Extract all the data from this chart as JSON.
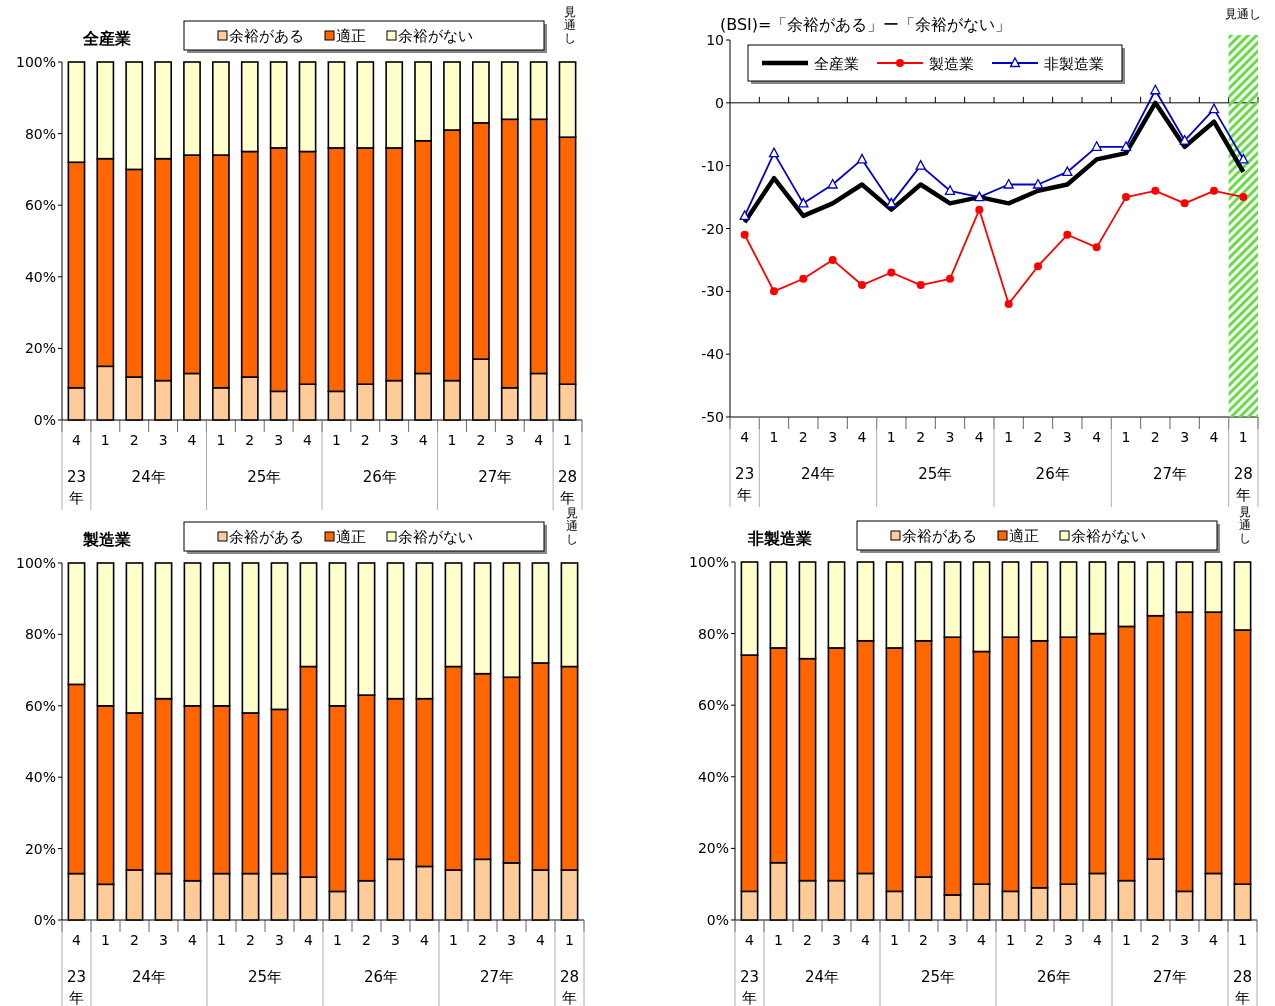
{
  "chart_data": [
    {
      "type": "bar",
      "stacked": true,
      "title": "全産業",
      "categories": [
        "4",
        "1",
        "2",
        "3",
        "4",
        "1",
        "2",
        "3",
        "4",
        "1",
        "2",
        "3",
        "4",
        "1",
        "2",
        "3",
        "4",
        "1"
      ],
      "series": [
        {
          "name": "余裕がある",
          "color": "#ffcc99",
          "values": [
            9,
            15,
            12,
            11,
            13,
            9,
            12,
            8,
            10,
            8,
            10,
            11,
            13,
            11,
            17,
            9,
            13,
            10
          ]
        },
        {
          "name": "適正",
          "color": "#ff6600",
          "values": [
            63,
            58,
            58,
            62,
            61,
            65,
            63,
            68,
            65,
            68,
            66,
            65,
            65,
            70,
            66,
            75,
            71,
            69
          ]
        },
        {
          "name": "余裕がない",
          "color": "#ffffcc",
          "values": [
            28,
            27,
            30,
            27,
            26,
            26,
            25,
            24,
            25,
            24,
            24,
            24,
            22,
            19,
            17,
            16,
            16,
            21
          ]
        }
      ],
      "ylim": [
        0,
        100
      ],
      "yticks": [
        {
          "value": 0,
          "label": "0%"
        },
        {
          "value": 20,
          "label": "20%"
        },
        {
          "value": 40,
          "label": "40%"
        },
        {
          "value": 60,
          "label": "60%"
        },
        {
          "value": 80,
          "label": "80%"
        },
        {
          "value": 100,
          "label": "100%"
        }
      ],
      "legend": "top",
      "annotations": [
        "23年",
        "24年",
        "25年",
        "26年",
        "27年",
        "28年",
        "見通し"
      ]
    },
    {
      "type": "line",
      "title": "(BSI)=「余裕がある」ー「余裕がない」",
      "categories": [
        "4",
        "1",
        "2",
        "3",
        "4",
        "1",
        "2",
        "3",
        "4",
        "1",
        "2",
        "3",
        "4",
        "1",
        "2",
        "3",
        "4",
        "1"
      ],
      "series": [
        {
          "name": "全産業",
          "color": "#000000",
          "marker": "none",
          "values": [
            -19,
            -12,
            -18,
            -16,
            -13,
            -17,
            -13,
            -16,
            -15,
            -16,
            -14,
            -13,
            -9,
            -8,
            0,
            -7,
            -3,
            -11
          ]
        },
        {
          "name": "製造業",
          "color": "#ff0000",
          "marker": "circle",
          "values": [
            -21,
            -30,
            -28,
            -25,
            -29,
            -27,
            -29,
            -28,
            -17,
            -32,
            -26,
            -21,
            -23,
            -15,
            -14,
            -16,
            -14,
            -15
          ]
        },
        {
          "name": "非製造業",
          "color": "#0000cc",
          "marker": "triangle",
          "values": [
            -18,
            -8,
            -16,
            -13,
            -9,
            -16,
            -10,
            -14,
            -15,
            -13,
            -13,
            -11,
            -7,
            -7,
            2,
            -6,
            -1,
            -9
          ]
        }
      ],
      "ylim": [
        -50,
        10
      ],
      "yticks": [
        -50,
        -40,
        -30,
        -20,
        -10,
        0,
        10
      ],
      "legend": "top left",
      "annotations": [
        "23年",
        "24年",
        "25年",
        "26年",
        "27年",
        "28年",
        "見通し"
      ]
    },
    {
      "type": "bar",
      "stacked": true,
      "title": "製造業",
      "categories": [
        "4",
        "1",
        "2",
        "3",
        "4",
        "1",
        "2",
        "3",
        "4",
        "1",
        "2",
        "3",
        "4",
        "1",
        "2",
        "3",
        "4",
        "1"
      ],
      "series": [
        {
          "name": "余裕がある",
          "color": "#ffcc99",
          "values": [
            13,
            10,
            14,
            13,
            11,
            13,
            13,
            13,
            12,
            8,
            11,
            17,
            15,
            14,
            17,
            16,
            14,
            14
          ]
        },
        {
          "name": "適正",
          "color": "#ff6600",
          "values": [
            53,
            50,
            44,
            49,
            49,
            47,
            45,
            46,
            59,
            52,
            52,
            45,
            47,
            57,
            52,
            52,
            58,
            57
          ]
        },
        {
          "name": "余裕がない",
          "color": "#ffffcc",
          "values": [
            34,
            40,
            42,
            38,
            40,
            40,
            42,
            41,
            29,
            40,
            37,
            38,
            38,
            29,
            31,
            32,
            28,
            29
          ]
        }
      ],
      "ylim": [
        0,
        100
      ],
      "yticks": [
        {
          "value": 0,
          "label": "0%"
        },
        {
          "value": 20,
          "label": "20%"
        },
        {
          "value": 40,
          "label": "40%"
        },
        {
          "value": 60,
          "label": "60%"
        },
        {
          "value": 80,
          "label": "80%"
        },
        {
          "value": 100,
          "label": "100%"
        }
      ],
      "legend": "top",
      "annotations": [
        "23年",
        "24年",
        "25年",
        "26年",
        "27年",
        "28年",
        "見通し"
      ]
    },
    {
      "type": "bar",
      "stacked": true,
      "title": "非製造業",
      "categories": [
        "4",
        "1",
        "2",
        "3",
        "4",
        "1",
        "2",
        "3",
        "4",
        "1",
        "2",
        "3",
        "4",
        "1",
        "2",
        "3",
        "4",
        "1"
      ],
      "series": [
        {
          "name": "余裕がある",
          "color": "#ffcc99",
          "values": [
            8,
            16,
            11,
            11,
            13,
            8,
            12,
            7,
            10,
            8,
            9,
            10,
            13,
            11,
            17,
            8,
            13,
            10
          ]
        },
        {
          "name": "適正",
          "color": "#ff6600",
          "values": [
            66,
            60,
            62,
            65,
            65,
            68,
            66,
            72,
            65,
            71,
            69,
            69,
            67,
            71,
            68,
            78,
            73,
            71
          ]
        },
        {
          "name": "余裕がない",
          "color": "#ffffcc",
          "values": [
            26,
            24,
            27,
            24,
            22,
            24,
            22,
            21,
            25,
            21,
            22,
            21,
            20,
            18,
            15,
            14,
            14,
            19
          ]
        }
      ],
      "ylim": [
        0,
        100
      ],
      "yticks": [
        {
          "value": 0,
          "label": "0%"
        },
        {
          "value": 20,
          "label": "20%"
        },
        {
          "value": 40,
          "label": "40%"
        },
        {
          "value": 60,
          "label": "60%"
        },
        {
          "value": 80,
          "label": "80%"
        },
        {
          "value": 100,
          "label": "100%"
        }
      ],
      "legend": "top",
      "annotations": [
        "23年",
        "24年",
        "25年",
        "26年",
        "27年",
        "28年",
        "見通し"
      ]
    }
  ]
}
